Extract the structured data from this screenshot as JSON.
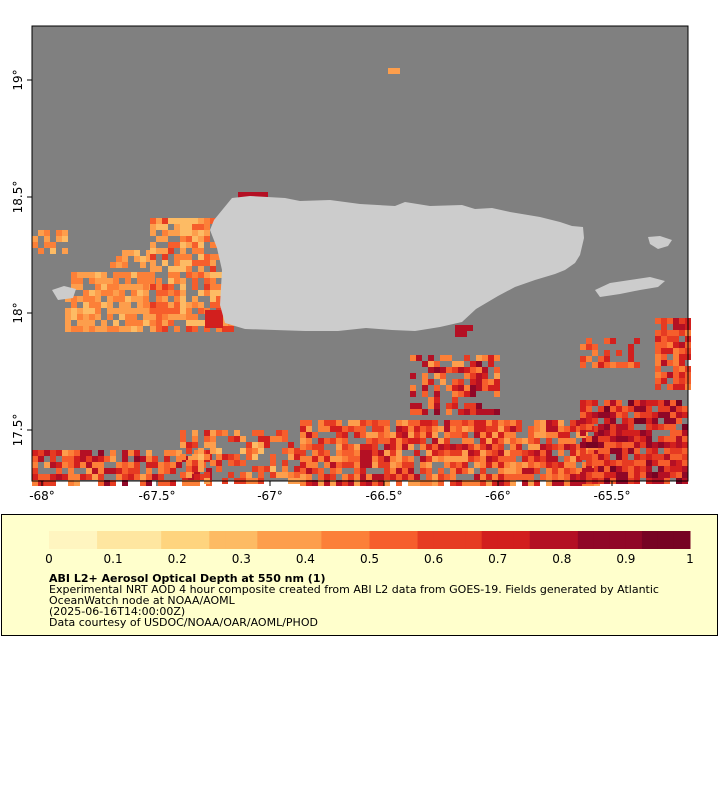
{
  "map": {
    "lon_ticks": [
      "-68°",
      "-67.5°",
      "-67°",
      "-66.5°",
      "-66°",
      "-65.5°"
    ],
    "lat_ticks": [
      "19°",
      "18.5°",
      "18°",
      "17.5°"
    ],
    "colors": {
      "ocean_no_data": "#808080",
      "land": "#cccccc",
      "scale": [
        "#fff5c0",
        "#fee6a0",
        "#fed47e",
        "#fdbb64",
        "#fd9e4c",
        "#fc8038",
        "#f65e2c",
        "#e63b22",
        "#d21f1e",
        "#b41024",
        "#900727",
        "#770323"
      ]
    }
  },
  "legend": {
    "ticks": [
      "0",
      "0.1",
      "0.2",
      "0.3",
      "0.4",
      "0.5",
      "0.6",
      "0.7",
      "0.8",
      "0.9",
      "1"
    ],
    "title": "ABI L2+ Aerosol Optical Depth at 550 nm (1)",
    "line1": "Experimental NRT AOD 4 hour composite created from ABI L2 data from GOES-19. Fields generated by Atlantic",
    "line2": "OceanWatch node at NOAA/AOML",
    "line3": "(2025-06-16T14:00:00Z)",
    "line4": "Data courtesy of USDOC/NOAA/OAR/AOML/PHOD",
    "background": "#ffffcc"
  }
}
